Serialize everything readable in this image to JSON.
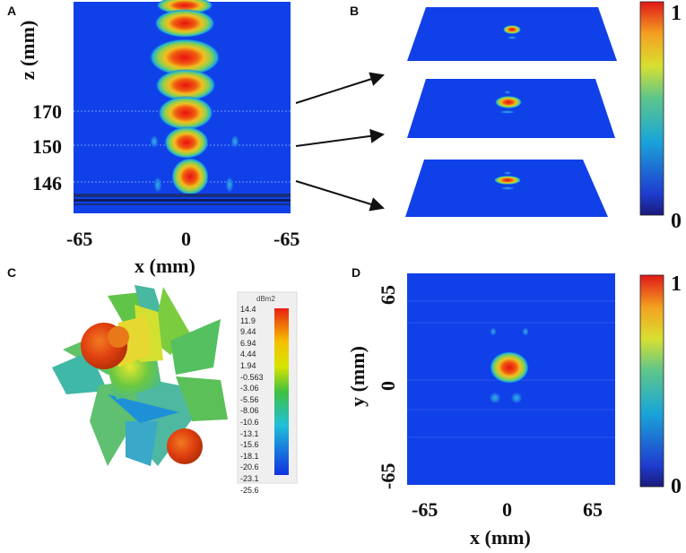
{
  "panels": {
    "a": {
      "letter": "A",
      "z_axis_label": "z (mm)",
      "z_ticks": [
        "170",
        "150",
        "146"
      ],
      "x_ticks": [
        "-65",
        "0",
        "-65"
      ],
      "x_axis_label": "x (mm)"
    },
    "b": {
      "letter": "B",
      "colorbar_max": "1",
      "colorbar_min": "0"
    },
    "c": {
      "letter": "C",
      "legend_unit": "dBm2",
      "legend_values": [
        "14.4",
        "11.9",
        "9.44",
        "6.94",
        "4.44",
        "1.94",
        "-0.563",
        "-3.06",
        "-5.56",
        "-8.06",
        "-10.6",
        "-13.1",
        "-15.6",
        "-18.1",
        "-20.6",
        "-23.1",
        "-25.6"
      ]
    },
    "d": {
      "letter": "D",
      "y_axis_label": "y (mm)",
      "y_ticks": [
        "65",
        "0",
        "-65"
      ],
      "x_ticks": [
        "-65",
        "0",
        "65"
      ],
      "x_axis_label": "x (mm)",
      "colorbar_max": "1",
      "colorbar_min": "0"
    }
  },
  "colors": {
    "field_background": "#1040e8",
    "hot": "#e81010",
    "jet_scale": [
      "#00008f",
      "#0000ff",
      "#00ffff",
      "#ffff00",
      "#ff0000"
    ]
  }
}
